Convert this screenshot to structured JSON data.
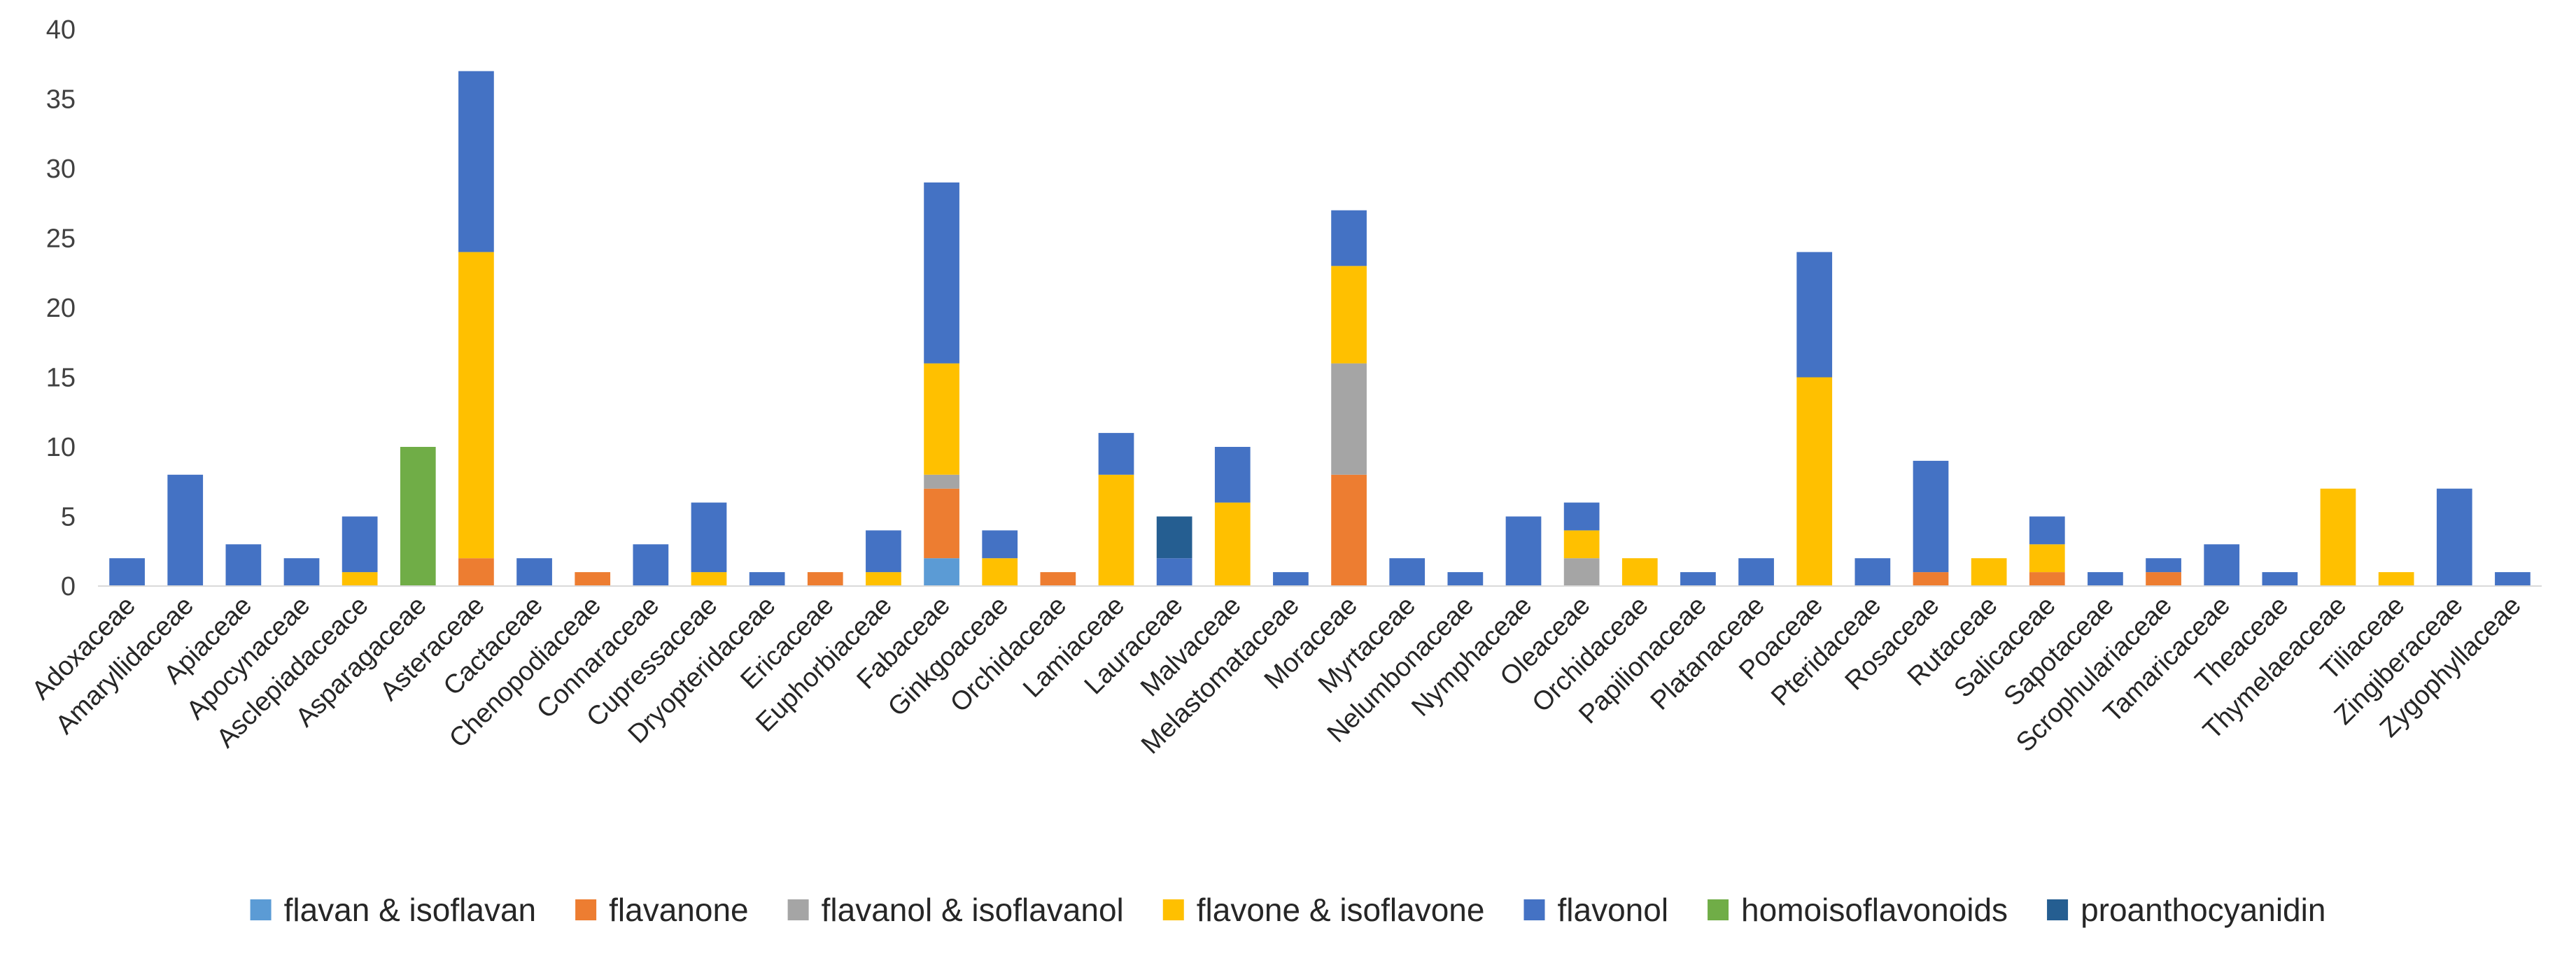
{
  "chart_data": {
    "type": "bar",
    "stacked": true,
    "title": "",
    "xlabel": "",
    "ylabel": "",
    "ylim": [
      0,
      40
    ],
    "yticks": [
      0,
      5,
      10,
      15,
      20,
      25,
      30,
      35,
      40
    ],
    "grid": false,
    "legend_position": "bottom",
    "categories": [
      "Adoxaceae",
      "Amaryllidaceae",
      "Apiaceae",
      "Apocynaceae",
      "Asclepiadaceace",
      "Asparagaceae",
      "Asteraceae",
      "Cactaceae",
      "Chenopodiaceae",
      "Connaraceae",
      "Cupressaceae",
      "Dryopteridaceae",
      "Ericaceae",
      "Euphorbiaceae",
      "Fabaceae",
      "Ginkgoaceae",
      "Orchidaceae",
      "Lamiaceae",
      "Lauraceae",
      "Malvaceae",
      "Melastomataceae",
      "Moraceae",
      "Myrtaceae",
      "Nelumbonaceae",
      "Nymphaceae",
      "Oleaceae",
      "Orchidaceae",
      "Papilionaceae",
      "Platanaceae",
      "Poaceae",
      "Pteridaceae",
      "Rosaceae",
      "Rutaceae",
      "Salicaceae",
      "Sapotaceae",
      "Scrophulariaceae",
      "Tamaricaceae",
      "Theaceae",
      "Thymelaeaceae",
      "Tiliaceae",
      "Zingiberaceae",
      "Zygophyllaceae"
    ],
    "series": [
      {
        "name": "flavan & isoflavan",
        "color": "#5B9BD5",
        "values": [
          0,
          0,
          0,
          0,
          0,
          0,
          0,
          0,
          0,
          0,
          0,
          0,
          0,
          0,
          2,
          0,
          0,
          0,
          0,
          0,
          0,
          0,
          0,
          0,
          0,
          0,
          0,
          0,
          0,
          0,
          0,
          0,
          0,
          0,
          0,
          0,
          0,
          0,
          0,
          0,
          0,
          0
        ]
      },
      {
        "name": "flavanone",
        "color": "#ED7D31",
        "values": [
          0,
          0,
          0,
          0,
          0,
          0,
          2,
          0,
          1,
          0,
          0,
          0,
          1,
          0,
          5,
          0,
          1,
          0,
          0,
          0,
          0,
          8,
          0,
          0,
          0,
          0,
          0,
          0,
          0,
          0,
          0,
          1,
          0,
          1,
          0,
          1,
          0,
          0,
          0,
          0,
          0,
          0
        ]
      },
      {
        "name": "flavanol & isoflavanol",
        "color": "#A5A5A5",
        "values": [
          0,
          0,
          0,
          0,
          0,
          0,
          0,
          0,
          0,
          0,
          0,
          0,
          0,
          0,
          1,
          0,
          0,
          0,
          0,
          0,
          0,
          8,
          0,
          0,
          0,
          2,
          0,
          0,
          0,
          0,
          0,
          0,
          0,
          0,
          0,
          0,
          0,
          0,
          0,
          0,
          0,
          0
        ]
      },
      {
        "name": "flavone & isoflavone",
        "color": "#FFC000",
        "values": [
          0,
          0,
          0,
          0,
          1,
          0,
          22,
          0,
          0,
          0,
          1,
          0,
          0,
          1,
          8,
          2,
          0,
          8,
          0,
          6,
          0,
          7,
          0,
          0,
          0,
          2,
          2,
          0,
          0,
          15,
          0,
          0,
          2,
          2,
          0,
          0,
          0,
          0,
          7,
          1,
          0,
          0
        ]
      },
      {
        "name": "flavonol",
        "color": "#4472C4",
        "values": [
          2,
          8,
          3,
          2,
          4,
          0,
          13,
          2,
          0,
          3,
          5,
          1,
          0,
          3,
          13,
          2,
          0,
          3,
          2,
          4,
          1,
          4,
          2,
          1,
          5,
          2,
          0,
          1,
          2,
          9,
          2,
          8,
          0,
          2,
          1,
          1,
          3,
          1,
          0,
          0,
          7,
          1
        ]
      },
      {
        "name": "homoisoflavonoids",
        "color": "#70AD47",
        "values": [
          0,
          0,
          0,
          0,
          0,
          10,
          0,
          0,
          0,
          0,
          0,
          0,
          0,
          0,
          0,
          0,
          0,
          0,
          0,
          0,
          0,
          0,
          0,
          0,
          0,
          0,
          0,
          0,
          0,
          0,
          0,
          0,
          0,
          0,
          0,
          0,
          0,
          0,
          0,
          0,
          0,
          0
        ]
      },
      {
        "name": "proanthocyanidin",
        "color": "#255E91",
        "values": [
          0,
          0,
          0,
          0,
          0,
          0,
          0,
          0,
          0,
          0,
          0,
          0,
          0,
          0,
          0,
          0,
          0,
          0,
          3,
          0,
          0,
          0,
          0,
          0,
          0,
          0,
          0,
          0,
          0,
          0,
          0,
          0,
          0,
          0,
          0,
          0,
          0,
          0,
          0,
          0,
          0,
          0
        ]
      }
    ]
  }
}
